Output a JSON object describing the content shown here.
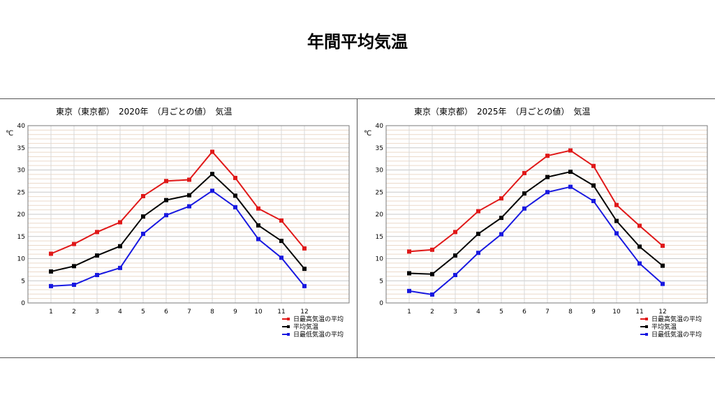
{
  "page": {
    "title": "年間平均気温"
  },
  "chart_data": [
    {
      "type": "line",
      "title": "東京（東京都）　2020年　（月ごとの値）　気温",
      "ylabel": "℃",
      "xlabel": "",
      "categories": [
        "1",
        "2",
        "3",
        "4",
        "5",
        "6",
        "7",
        "8",
        "9",
        "10",
        "11",
        "12"
      ],
      "ylim": [
        0,
        40
      ],
      "yticks": [
        0,
        5,
        10,
        15,
        20,
        25,
        30,
        35,
        40
      ],
      "grid": true,
      "legend": "bottom-right",
      "series": [
        {
          "name": "日最高気温の平均",
          "color": "#e01818",
          "values": [
            11.1,
            13.3,
            16.0,
            18.2,
            24.1,
            27.5,
            27.8,
            34.1,
            28.2,
            21.3,
            18.6,
            12.3
          ]
        },
        {
          "name": "平均気温",
          "color": "#000000",
          "values": [
            7.1,
            8.3,
            10.7,
            12.8,
            19.5,
            23.2,
            24.3,
            29.1,
            24.2,
            17.5,
            14.0,
            7.7
          ]
        },
        {
          "name": "日最低気温の平均",
          "color": "#1818e0",
          "values": [
            3.8,
            4.1,
            6.3,
            7.9,
            15.6,
            19.8,
            21.8,
            25.3,
            21.6,
            14.4,
            10.2,
            3.8
          ]
        }
      ]
    },
    {
      "type": "line",
      "title": "東京（東京都）　2025年　（月ごとの値）　気温",
      "ylabel": "℃",
      "xlabel": "",
      "categories": [
        "1",
        "2",
        "3",
        "4",
        "5",
        "6",
        "7",
        "8",
        "9",
        "10",
        "11",
        "12"
      ],
      "ylim": [
        0,
        40
      ],
      "yticks": [
        0,
        5,
        10,
        15,
        20,
        25,
        30,
        35,
        40
      ],
      "grid": true,
      "legend": "bottom-right",
      "series": [
        {
          "name": "日最高気温の平均",
          "color": "#e01818",
          "values": [
            11.6,
            12.0,
            16.0,
            20.7,
            23.6,
            29.3,
            33.2,
            34.4,
            30.9,
            22.1,
            17.4,
            12.9
          ]
        },
        {
          "name": "平均気温",
          "color": "#000000",
          "values": [
            6.7,
            6.5,
            10.7,
            15.6,
            19.2,
            24.7,
            28.4,
            29.6,
            26.5,
            18.5,
            12.7,
            8.4
          ]
        },
        {
          "name": "日最低気温の平均",
          "color": "#1818e0",
          "values": [
            2.7,
            1.9,
            6.3,
            11.3,
            15.5,
            21.3,
            25.0,
            26.2,
            23.0,
            15.7,
            8.9,
            4.3
          ]
        }
      ]
    }
  ]
}
